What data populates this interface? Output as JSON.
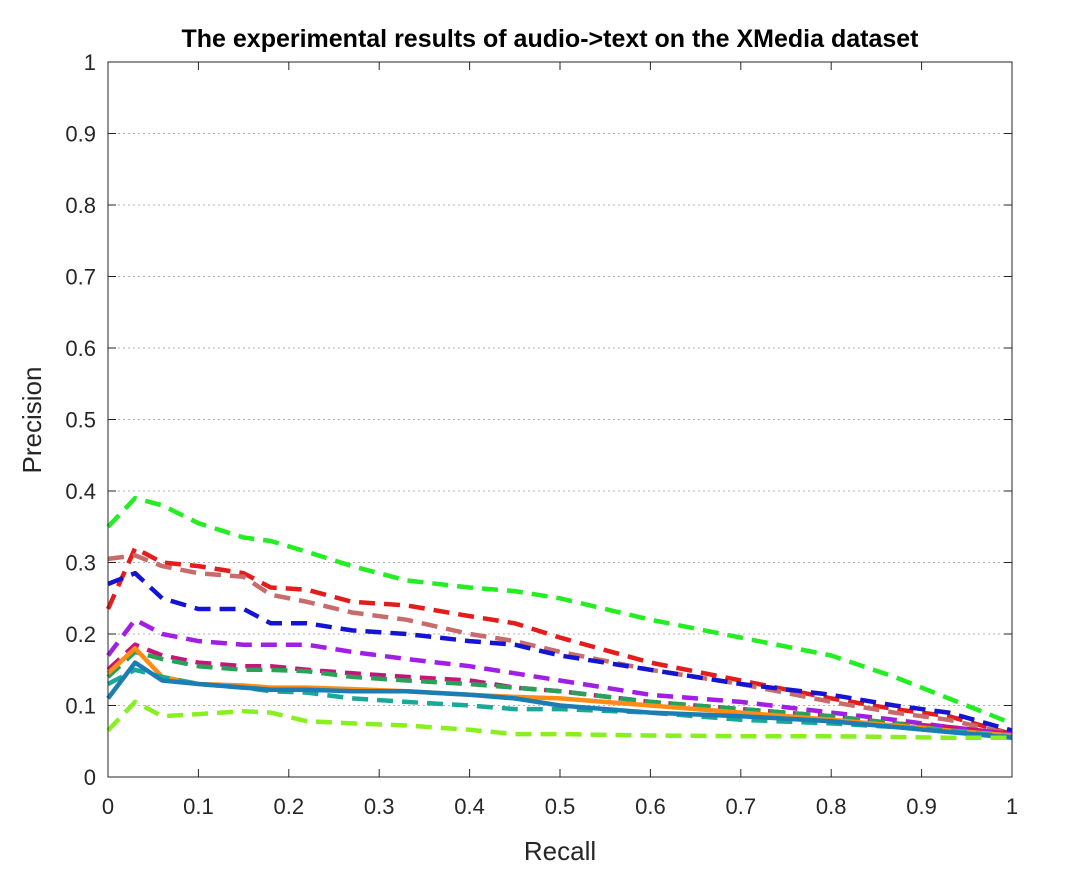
{
  "chart_data": {
    "type": "line",
    "title": "The experimental results of audio->text on the XMedia dataset",
    "xlabel": "Recall",
    "ylabel": "Precision",
    "xlim": [
      0,
      1
    ],
    "ylim": [
      0,
      1
    ],
    "xticks": [
      "0",
      "0.1",
      "0.2",
      "0.3",
      "0.4",
      "0.5",
      "0.6",
      "0.7",
      "0.8",
      "0.9",
      "1"
    ],
    "yticks": [
      "0",
      "0.1",
      "0.2",
      "0.3",
      "0.4",
      "0.5",
      "0.6",
      "0.7",
      "0.8",
      "0.9",
      "1"
    ],
    "grid": "horizontal dotted",
    "legend": "none",
    "x": [
      0,
      0.03,
      0.06,
      0.1,
      0.15,
      0.18,
      0.22,
      0.27,
      0.33,
      0.4,
      0.45,
      0.5,
      0.6,
      0.7,
      0.8,
      0.87,
      0.93,
      1.0
    ],
    "series": [
      {
        "color": "#22ee22",
        "style": "dashed",
        "values": [
          0.35,
          0.39,
          0.38,
          0.355,
          0.335,
          0.33,
          0.315,
          0.295,
          0.275,
          0.265,
          0.26,
          0.25,
          0.22,
          0.195,
          0.17,
          0.14,
          0.11,
          0.075
        ]
      },
      {
        "color": "#e51c1c",
        "style": "dashed",
        "values": [
          0.235,
          0.32,
          0.3,
          0.295,
          0.285,
          0.265,
          0.262,
          0.245,
          0.24,
          0.225,
          0.215,
          0.195,
          0.16,
          0.135,
          0.11,
          0.095,
          0.085,
          0.06
        ]
      },
      {
        "color": "#c86b6b",
        "style": "dashed",
        "values": [
          0.305,
          0.31,
          0.295,
          0.285,
          0.28,
          0.255,
          0.245,
          0.23,
          0.22,
          0.2,
          0.19,
          0.175,
          0.15,
          0.13,
          0.105,
          0.09,
          0.08,
          0.06
        ]
      },
      {
        "color": "#1414d2",
        "style": "dashed",
        "values": [
          0.27,
          0.285,
          0.25,
          0.235,
          0.235,
          0.215,
          0.215,
          0.205,
          0.2,
          0.19,
          0.185,
          0.17,
          0.15,
          0.13,
          0.115,
          0.1,
          0.09,
          0.065
        ]
      },
      {
        "color": "#a01ee6",
        "style": "dashed",
        "values": [
          0.17,
          0.22,
          0.2,
          0.19,
          0.185,
          0.185,
          0.185,
          0.175,
          0.165,
          0.155,
          0.145,
          0.135,
          0.115,
          0.105,
          0.09,
          0.08,
          0.07,
          0.06
        ]
      },
      {
        "color": "#c8147a",
        "style": "dashed",
        "values": [
          0.15,
          0.185,
          0.17,
          0.16,
          0.155,
          0.155,
          0.15,
          0.145,
          0.14,
          0.135,
          0.125,
          0.12,
          0.105,
          0.095,
          0.085,
          0.075,
          0.07,
          0.06
        ]
      },
      {
        "color": "#2aa05a",
        "style": "dashed",
        "values": [
          0.14,
          0.175,
          0.165,
          0.155,
          0.15,
          0.15,
          0.148,
          0.14,
          0.135,
          0.13,
          0.125,
          0.12,
          0.105,
          0.095,
          0.085,
          0.075,
          0.065,
          0.058
        ]
      },
      {
        "color": "#ff8c14",
        "style": "solid",
        "values": [
          0.145,
          0.18,
          0.14,
          0.13,
          0.128,
          0.125,
          0.125,
          0.123,
          0.12,
          0.115,
          0.112,
          0.11,
          0.1,
          0.09,
          0.08,
          0.072,
          0.065,
          0.058
        ]
      },
      {
        "color": "#1aa898",
        "style": "dashed",
        "values": [
          0.13,
          0.15,
          0.14,
          0.13,
          0.125,
          0.12,
          0.118,
          0.11,
          0.105,
          0.1,
          0.095,
          0.095,
          0.09,
          0.08,
          0.075,
          0.07,
          0.065,
          0.056
        ]
      },
      {
        "color": "#1a7eb5",
        "style": "solid",
        "values": [
          0.11,
          0.16,
          0.135,
          0.13,
          0.125,
          0.122,
          0.122,
          0.12,
          0.12,
          0.115,
          0.11,
          0.1,
          0.09,
          0.085,
          0.078,
          0.07,
          0.063,
          0.055
        ]
      },
      {
        "color": "#88f020",
        "style": "dashed",
        "values": [
          0.065,
          0.105,
          0.085,
          0.088,
          0.092,
          0.09,
          0.078,
          0.075,
          0.072,
          0.066,
          0.06,
          0.06,
          0.058,
          0.057,
          0.057,
          0.056,
          0.055,
          0.055
        ]
      }
    ]
  }
}
